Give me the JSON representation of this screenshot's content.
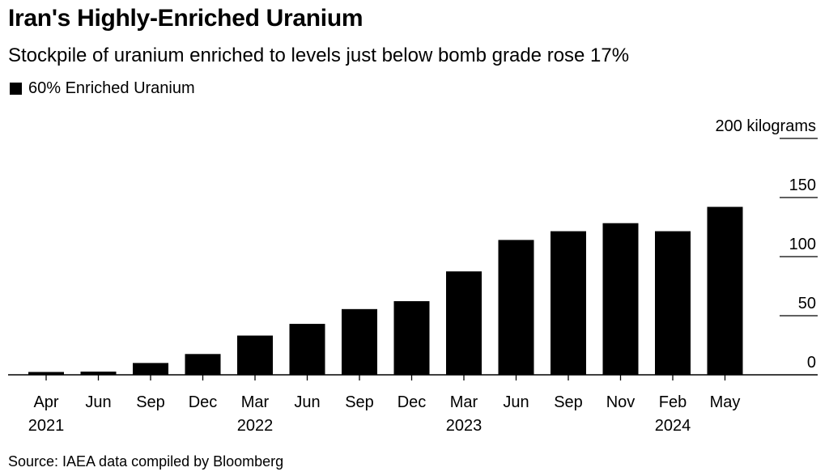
{
  "colors": {
    "bar": "#000000",
    "axis": "#000000",
    "text": "#000000",
    "background": "#ffffff"
  },
  "chart_data": {
    "type": "bar",
    "title": "Iran's Highly-Enriched Uranium",
    "subtitle": "Stockpile of uranium enriched to levels just below bomb grade rose 17%",
    "legend_position": "top-left",
    "series": [
      {
        "name": "60% Enriched Uranium",
        "values": [
          2.4,
          2.7,
          10.0,
          17.6,
          33.2,
          43.1,
          55.6,
          62.3,
          87.5,
          114.1,
          121.5,
          128.3,
          121.5,
          142.1
        ]
      }
    ],
    "categories": [
      {
        "month": "Apr",
        "year": "2021"
      },
      {
        "month": "Jun",
        "year": ""
      },
      {
        "month": "Sep",
        "year": ""
      },
      {
        "month": "Dec",
        "year": ""
      },
      {
        "month": "Mar",
        "year": "2022"
      },
      {
        "month": "Jun",
        "year": ""
      },
      {
        "month": "Sep",
        "year": ""
      },
      {
        "month": "Dec",
        "year": ""
      },
      {
        "month": "Mar",
        "year": "2023"
      },
      {
        "month": "Jun",
        "year": ""
      },
      {
        "month": "Sep",
        "year": ""
      },
      {
        "month": "Nov",
        "year": ""
      },
      {
        "month": "Feb",
        "year": "2024"
      },
      {
        "month": "May",
        "year": ""
      }
    ],
    "y_axis": {
      "ticks": [
        {
          "value": 0,
          "label": "0"
        },
        {
          "value": 50,
          "label": "50"
        },
        {
          "value": 100,
          "label": "100"
        },
        {
          "value": 150,
          "label": "150"
        },
        {
          "value": 200,
          "label": "200 kilograms"
        }
      ],
      "ylim": [
        0,
        200
      ],
      "position": "right"
    },
    "grid": false,
    "source": "Source: IAEA data compiled by Bloomberg"
  }
}
